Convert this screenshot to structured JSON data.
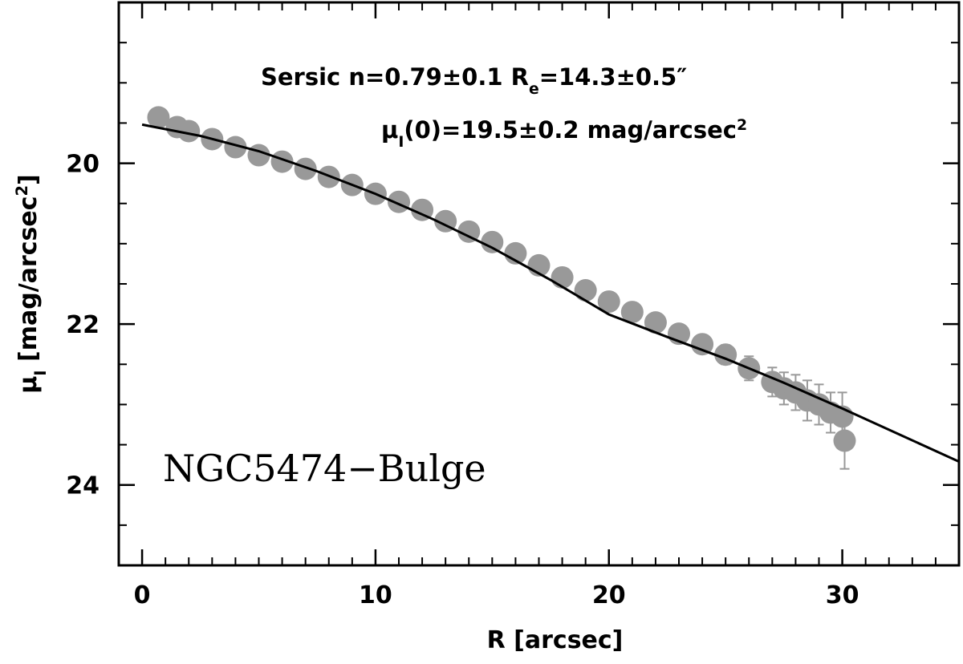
{
  "chart_data": {
    "type": "scatter",
    "xlabel": [
      {
        "text": "R [arcsec]"
      }
    ],
    "ylabel": [
      {
        "text": "μ"
      },
      {
        "text": "I",
        "sub": true
      },
      {
        "text": " [mag/arcsec"
      },
      {
        "text": "2",
        "sup": true
      },
      {
        "text": "]"
      }
    ],
    "annotations": [
      [
        {
          "text": "Sersic   n=0.79±0.1  R"
        },
        {
          "text": "e",
          "sub": true
        },
        {
          "text": "=14.3±0.5″"
        }
      ],
      [
        {
          "text": "μ"
        },
        {
          "text": "I",
          "sub": true
        },
        {
          "text": "(0)=19.5±0.2 mag/arcsec"
        },
        {
          "text": "2",
          "sup": true
        }
      ]
    ],
    "label": "NGC5474−Bulge",
    "xlim": [
      -1,
      35
    ],
    "ylim": [
      25,
      18
    ],
    "xticks": [
      0,
      10,
      20,
      30
    ],
    "yticks": [
      20,
      22,
      24
    ],
    "xminorticks": [
      1,
      2,
      3,
      4,
      5,
      6,
      7,
      8,
      9,
      11,
      12,
      13,
      14,
      15,
      16,
      17,
      18,
      19,
      21,
      22,
      23,
      24,
      25,
      26,
      27,
      28,
      29,
      31,
      32,
      33,
      34
    ],
    "yminorticks": [
      18.5,
      19,
      19.5,
      20.5,
      21,
      21.5,
      22.5,
      23,
      23.5,
      24.5
    ],
    "series": [
      {
        "type": "scatter",
        "color": "#999999",
        "x": [
          0.7,
          1.5,
          2,
          3,
          4,
          5,
          6,
          7,
          8,
          9,
          10,
          11,
          12,
          13,
          14,
          15,
          16,
          17,
          18,
          19,
          20,
          21,
          22,
          23,
          24,
          25,
          26,
          27,
          27.5,
          28,
          28.5,
          29,
          29.5,
          30,
          30.1
        ],
        "values": [
          19.43,
          19.55,
          19.6,
          19.7,
          19.8,
          19.9,
          19.98,
          20.07,
          20.17,
          20.27,
          20.38,
          20.48,
          20.58,
          20.72,
          20.85,
          20.98,
          21.12,
          21.27,
          21.42,
          21.58,
          21.72,
          21.85,
          21.98,
          22.12,
          22.25,
          22.38,
          22.55,
          22.72,
          22.8,
          22.85,
          22.95,
          23.0,
          23.1,
          23.15,
          23.45
        ],
        "errors": [
          0.02,
          0.02,
          0.02,
          0.02,
          0.02,
          0.02,
          0.02,
          0.02,
          0.02,
          0.02,
          0.03,
          0.03,
          0.03,
          0.03,
          0.03,
          0.04,
          0.04,
          0.04,
          0.05,
          0.05,
          0.06,
          0.06,
          0.07,
          0.08,
          0.1,
          0.12,
          0.15,
          0.18,
          0.2,
          0.22,
          0.25,
          0.25,
          0.25,
          0.3,
          0.35
        ]
      },
      {
        "type": "line",
        "color": "#000000",
        "x": [
          0,
          2.5,
          5,
          7.5,
          10,
          12.5,
          15,
          17.5,
          20,
          22.5,
          25,
          27.5,
          30,
          32.5,
          35
        ],
        "values": [
          19.52,
          19.66,
          19.85,
          20.1,
          20.38,
          20.7,
          21.05,
          21.45,
          21.88,
          22.16,
          22.43,
          22.73,
          23.05,
          23.38,
          23.71
        ]
      }
    ]
  }
}
